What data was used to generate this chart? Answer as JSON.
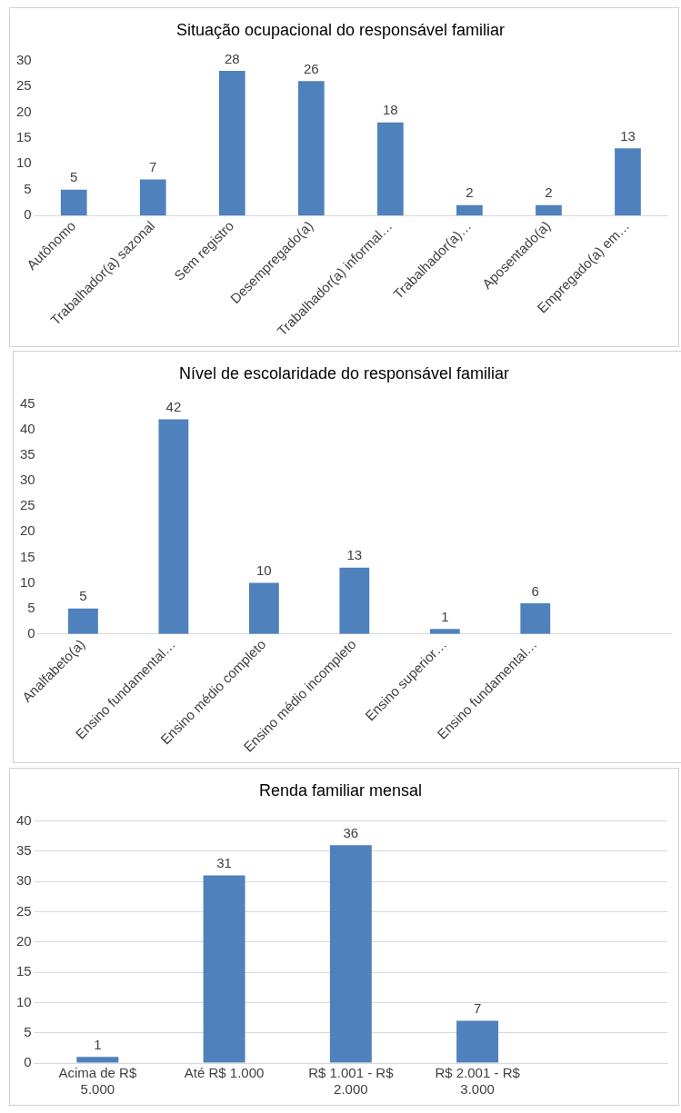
{
  "chart_data": [
    {
      "type": "bar",
      "title": "Situação ocupacional do responsável familiar",
      "categories": [
        "Autônomo",
        "Trabalhador(a) sazonal",
        "Sem registro",
        "Desempregado(a)",
        "Trabalhador(a) informal…",
        "Trabalhador(a)…",
        "Aposentado(a)",
        "Empregado(a) em…"
      ],
      "values": [
        5,
        7,
        28,
        26,
        18,
        2,
        2,
        13
      ],
      "color": "#4f81bd",
      "ylim": [
        0,
        30
      ],
      "yticks": [
        0,
        5,
        10,
        15,
        20,
        25,
        30
      ],
      "data_labels": true,
      "grid": false
    },
    {
      "type": "bar",
      "title": "Nível de escolaridade do responsável familiar",
      "categories": [
        "Analfabeto(a)",
        "Ensino fundamental…",
        "Ensino médio completo",
        "Ensino médio incompleto",
        "Ensino superior…",
        "Ensino fundamental…",
        null
      ],
      "values": [
        5,
        42,
        10,
        13,
        1,
        6,
        null
      ],
      "color": "#4f81bd",
      "ylim": [
        0,
        45
      ],
      "yticks": [
        0,
        5,
        10,
        15,
        20,
        25,
        30,
        35,
        40,
        45
      ],
      "data_labels": true,
      "grid": false
    },
    {
      "type": "bar",
      "title": "Renda familiar mensal",
      "categories": [
        "Acima de R$ 5.000",
        "Até R$ 1.000",
        "R$ 1.001 - R$ 2.000",
        "R$ 2.001 - R$ 3.000",
        null
      ],
      "values": [
        1,
        31,
        36,
        7,
        null
      ],
      "color": "#4f81bd",
      "ylim": [
        0,
        40
      ],
      "yticks": [
        0,
        5,
        10,
        15,
        20,
        25,
        30,
        35,
        40
      ],
      "data_labels": true,
      "grid": "y"
    }
  ]
}
